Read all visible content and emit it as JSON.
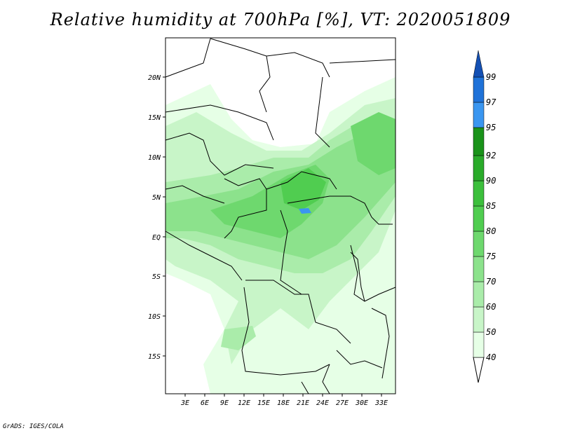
{
  "title": "Relative humidity at 700hPa [%], VT: 2020051809",
  "credit": "GrADS: IGES/COLA",
  "map": {
    "lat_labels": [
      "20N",
      "15N",
      "10N",
      "5N",
      "EQ",
      "5S",
      "10S",
      "15S"
    ],
    "lon_labels": [
      "3E",
      "6E",
      "9E",
      "12E",
      "15E",
      "18E",
      "21E",
      "24E",
      "27E",
      "30E",
      "33E"
    ]
  },
  "colorbar": {
    "levels": [
      "40",
      "50",
      "60",
      "70",
      "75",
      "80",
      "85",
      "90",
      "92",
      "95",
      "97",
      "99"
    ],
    "colors": [
      "#e6ffe6",
      "#c8f5c8",
      "#aaecaa",
      "#8ce28c",
      "#6ed86e",
      "#50cd50",
      "#3cbf3c",
      "#2aab2a",
      "#1a931a",
      "#3a96f0",
      "#1f72d8",
      "#1450b4"
    ]
  }
}
